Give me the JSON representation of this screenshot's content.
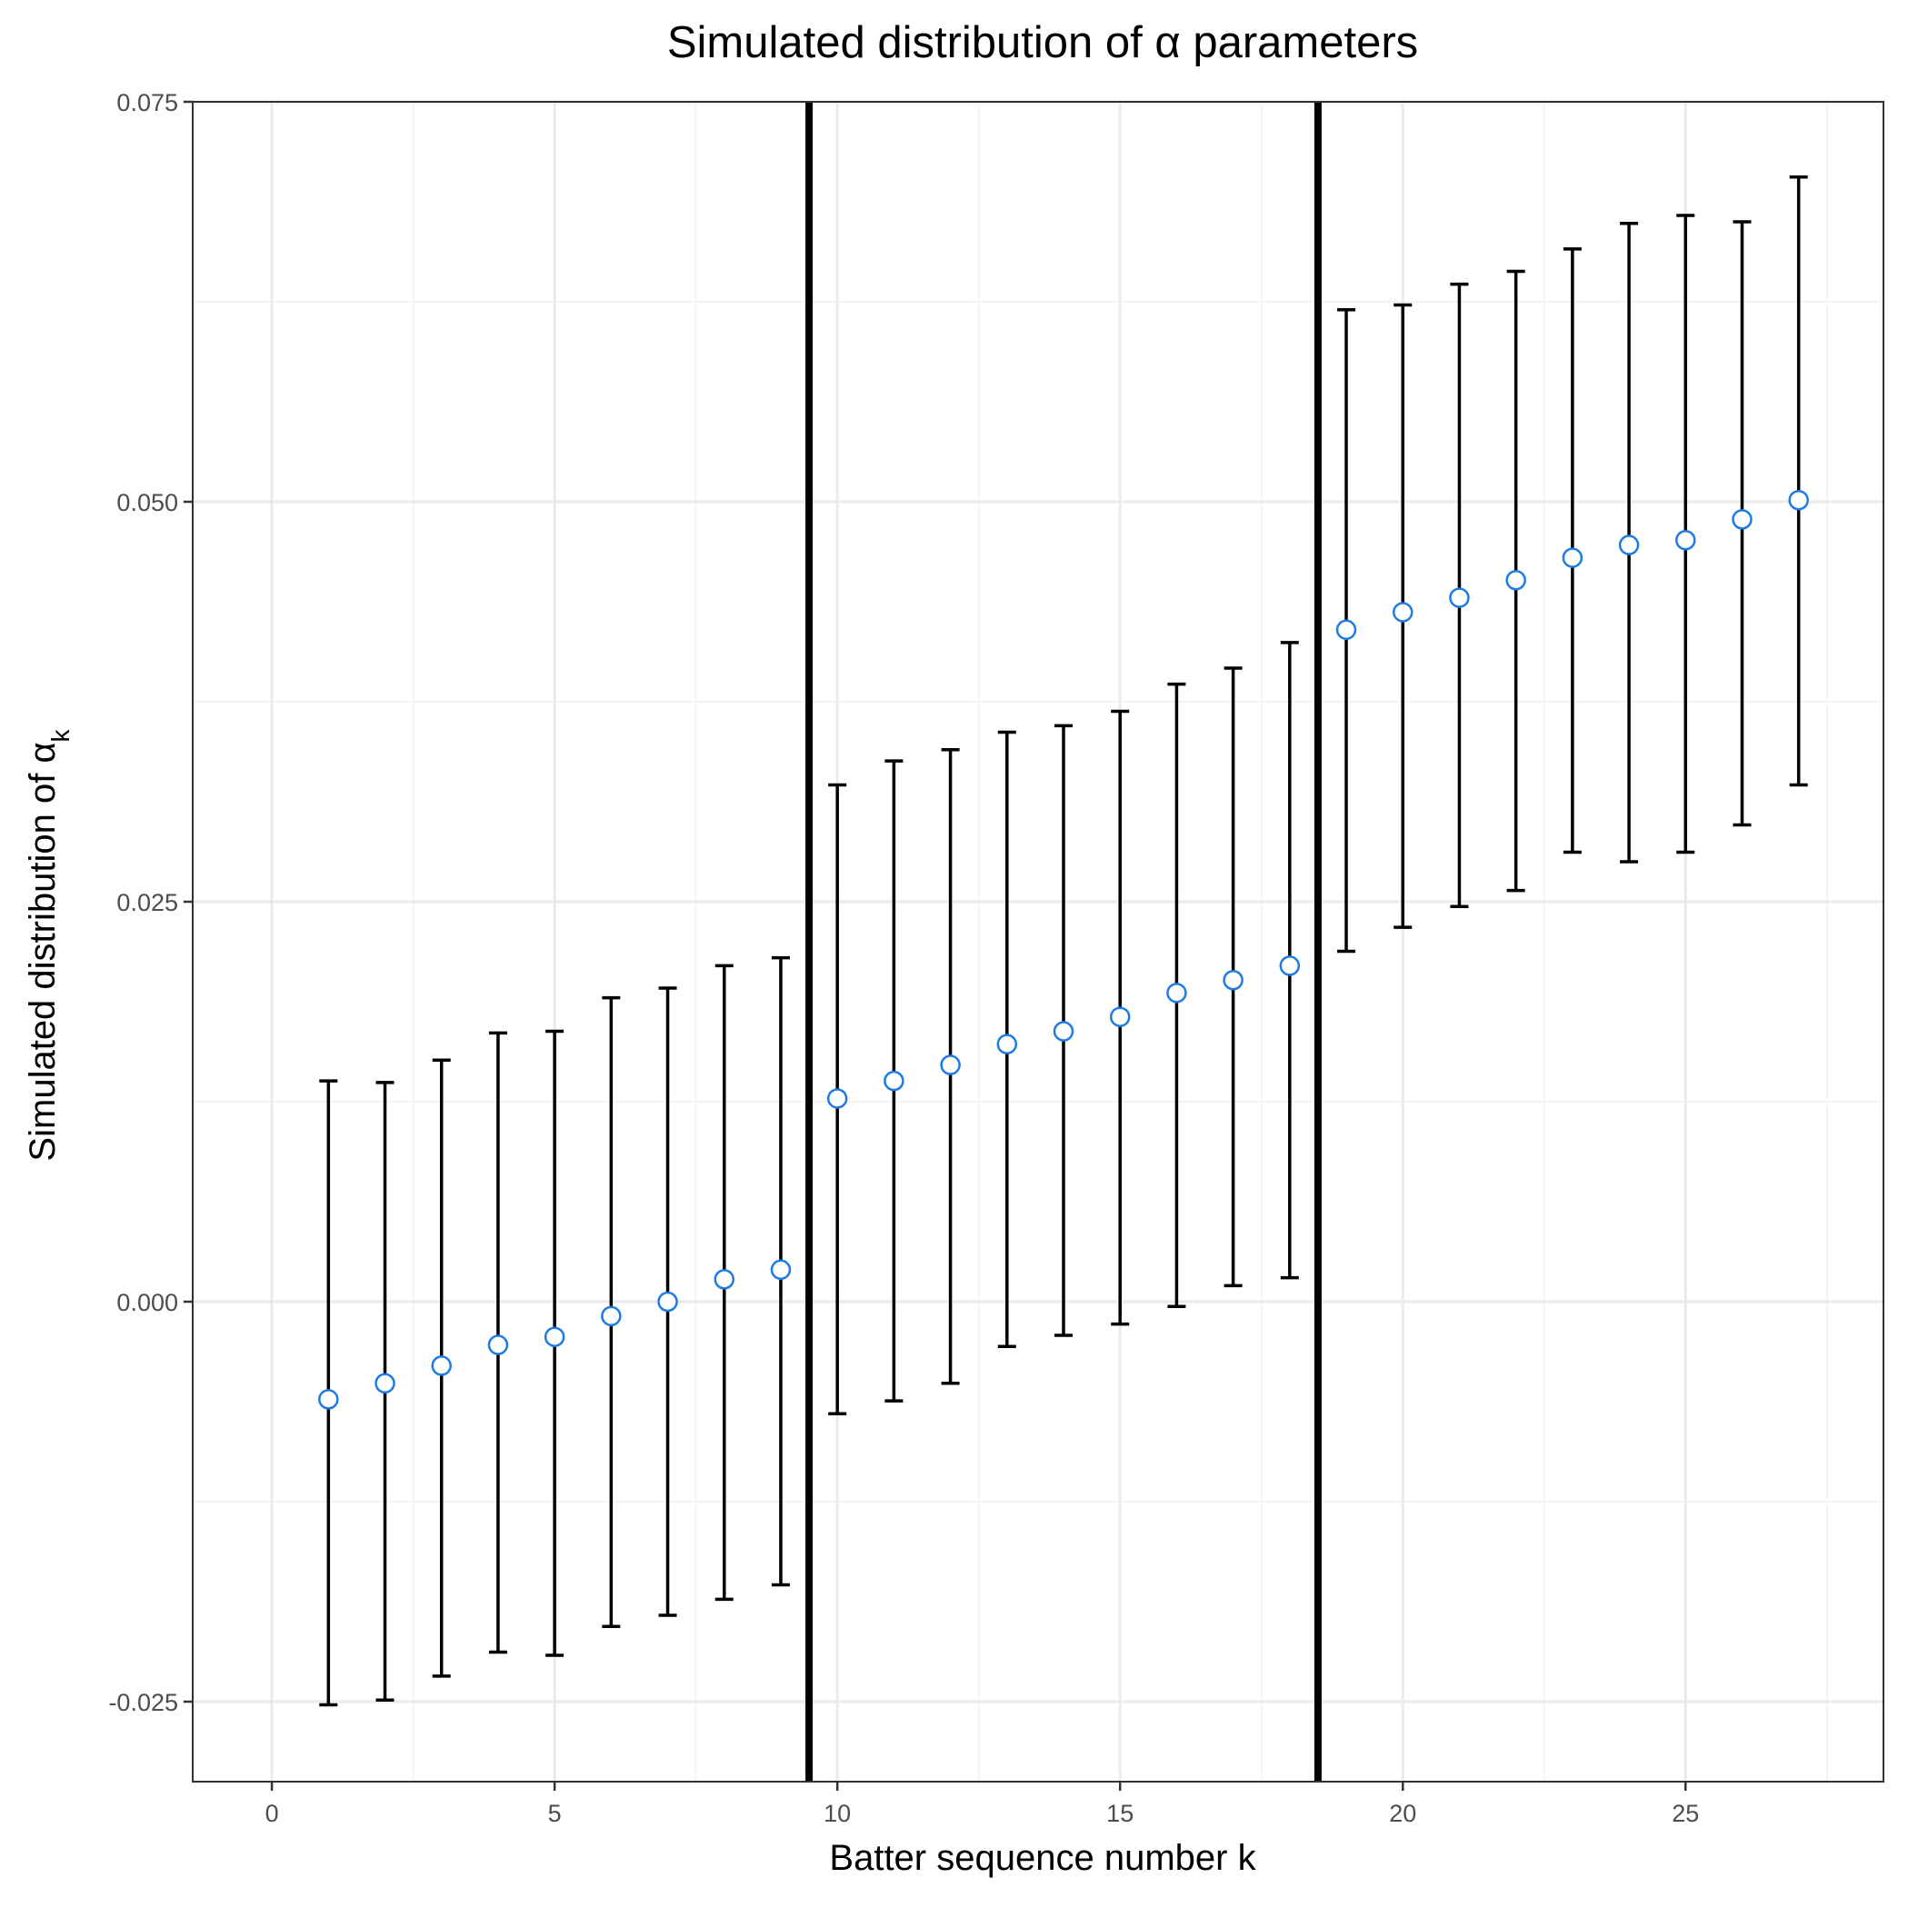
{
  "chart_data": {
    "type": "errorbar-scatter",
    "title": "Simulated distribution of α parameters",
    "xlabel": "Batter sequence number k",
    "ylabel_main": "Simulated distribution of α",
    "ylabel_subscript": "k",
    "xlim": [
      -1.4,
      28.5
    ],
    "ylim": [
      -0.03,
      0.075
    ],
    "x_ticks": [
      0,
      5,
      10,
      15,
      20,
      25
    ],
    "x_tick_labels": [
      "0",
      "5",
      "10",
      "15",
      "20",
      "25"
    ],
    "y_ticks": [
      -0.025,
      0.0,
      0.025,
      0.05,
      0.075
    ],
    "y_tick_labels": [
      "-0.025",
      "0.000",
      "0.025",
      "0.050",
      "0.075"
    ],
    "grid": true,
    "vlines": [
      9.5,
      18.5
    ],
    "points": [
      {
        "x": 1,
        "mean": -0.0061,
        "lower": -0.0252,
        "upper": 0.0138
      },
      {
        "x": 2,
        "mean": -0.0051,
        "lower": -0.0249,
        "upper": 0.0137
      },
      {
        "x": 3,
        "mean": -0.004,
        "lower": -0.0234,
        "upper": 0.0151
      },
      {
        "x": 4,
        "mean": -0.0027,
        "lower": -0.0219,
        "upper": 0.0168
      },
      {
        "x": 5,
        "mean": -0.0022,
        "lower": -0.0221,
        "upper": 0.0169
      },
      {
        "x": 6,
        "mean": -0.0009,
        "lower": -0.0203,
        "upper": 0.019
      },
      {
        "x": 7,
        "mean": 0.0,
        "lower": -0.0196,
        "upper": 0.0196
      },
      {
        "x": 8,
        "mean": 0.0014,
        "lower": -0.0186,
        "upper": 0.021
      },
      {
        "x": 9,
        "mean": 0.002,
        "lower": -0.0177,
        "upper": 0.0215
      },
      {
        "x": 10,
        "mean": 0.0127,
        "lower": -0.007,
        "upper": 0.0323
      },
      {
        "x": 11,
        "mean": 0.0138,
        "lower": -0.0062,
        "upper": 0.0338
      },
      {
        "x": 12,
        "mean": 0.0148,
        "lower": -0.0051,
        "upper": 0.0345
      },
      {
        "x": 13,
        "mean": 0.0161,
        "lower": -0.0028,
        "upper": 0.0356
      },
      {
        "x": 14,
        "mean": 0.0169,
        "lower": -0.0021,
        "upper": 0.036
      },
      {
        "x": 15,
        "mean": 0.0178,
        "lower": -0.0014,
        "upper": 0.0369
      },
      {
        "x": 16,
        "mean": 0.0193,
        "lower": -0.0003,
        "upper": 0.0386
      },
      {
        "x": 17,
        "mean": 0.0201,
        "lower": 0.001,
        "upper": 0.0396
      },
      {
        "x": 18,
        "mean": 0.021,
        "lower": 0.0015,
        "upper": 0.0412
      },
      {
        "x": 19,
        "mean": 0.042,
        "lower": 0.0219,
        "upper": 0.062
      },
      {
        "x": 20,
        "mean": 0.0431,
        "lower": 0.0234,
        "upper": 0.0623
      },
      {
        "x": 21,
        "mean": 0.044,
        "lower": 0.0247,
        "upper": 0.0636
      },
      {
        "x": 22,
        "mean": 0.0451,
        "lower": 0.0257,
        "upper": 0.0644
      },
      {
        "x": 23,
        "mean": 0.0465,
        "lower": 0.0281,
        "upper": 0.0658
      },
      {
        "x": 24,
        "mean": 0.0473,
        "lower": 0.0275,
        "upper": 0.0674
      },
      {
        "x": 25,
        "mean": 0.0476,
        "lower": 0.0281,
        "upper": 0.0679
      },
      {
        "x": 26,
        "mean": 0.0489,
        "lower": 0.0298,
        "upper": 0.0675
      },
      {
        "x": 27,
        "mean": 0.0501,
        "lower": 0.0323,
        "upper": 0.0703
      }
    ],
    "colors": {
      "point_stroke": "#1e7be5",
      "point_fill": "#ffffff",
      "errorbar": "#000000",
      "vline": "#000000",
      "grid_major": "#ebebeb",
      "grid_minor": "#f4f4f4",
      "panel_border": "#333333"
    }
  }
}
